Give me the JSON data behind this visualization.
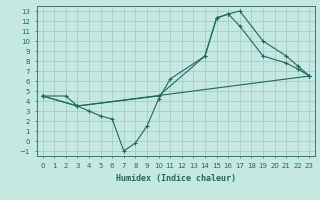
{
  "title": "",
  "xlabel": "Humidex (Indice chaleur)",
  "bg_color": "#c5e8e0",
  "grid_color": "#9dc8be",
  "line_color": "#1a6b5e",
  "xlim": [
    -0.5,
    23.5
  ],
  "ylim": [
    -1.5,
    13.5
  ],
  "xticks": [
    0,
    1,
    2,
    3,
    4,
    5,
    6,
    7,
    8,
    9,
    10,
    11,
    12,
    13,
    14,
    15,
    16,
    17,
    18,
    19,
    20,
    21,
    22,
    23
  ],
  "yticks": [
    -1,
    0,
    1,
    2,
    3,
    4,
    5,
    6,
    7,
    8,
    9,
    10,
    11,
    12,
    13
  ],
  "line1_x": [
    0,
    2,
    3,
    10,
    14,
    15,
    16,
    17,
    19,
    21,
    22,
    23
  ],
  "line1_y": [
    4.5,
    4.5,
    3.5,
    4.5,
    8.5,
    12.3,
    12.7,
    13.0,
    10.0,
    8.5,
    7.5,
    6.5
  ],
  "line2_x": [
    0,
    3,
    4,
    5,
    6,
    7,
    8,
    9,
    10,
    11,
    14,
    15,
    16,
    17,
    19,
    21,
    22,
    23
  ],
  "line2_y": [
    4.5,
    3.5,
    3.0,
    2.5,
    2.2,
    -1.0,
    -0.2,
    1.5,
    4.2,
    6.2,
    8.5,
    12.3,
    12.7,
    11.5,
    8.5,
    7.8,
    7.2,
    6.5
  ],
  "line3_x": [
    0,
    3,
    23
  ],
  "line3_y": [
    4.5,
    3.5,
    6.5
  ],
  "label_fontsize": 6,
  "tick_fontsize": 5
}
